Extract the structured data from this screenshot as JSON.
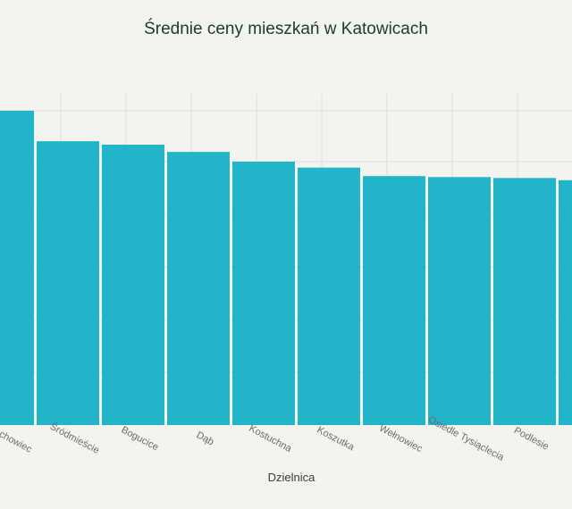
{
  "title": "Średnie ceny mieszkań w Katowicach",
  "chart_data": {
    "type": "bar",
    "title": "Średnie ceny mieszkań w Katowicach",
    "xlabel": "Dzielnica",
    "ylabel": "",
    "categories": [
      "Muchowiec",
      "Śródmieście",
      "Bogucice",
      "Dąb",
      "Kostuchna",
      "Koszutka",
      "Wełnowiec",
      "Osiedle Tysiąclecia",
      "Podlesie",
      ""
    ],
    "values": [
      100,
      90.3,
      89.2,
      86.9,
      83.8,
      81.9,
      79.2,
      78.9,
      78.6,
      77.9
    ],
    "ylim": [
      0,
      105
    ],
    "grid": true,
    "colors": {
      "bar": "#22b5c9",
      "grid": "#dedede",
      "background": "#f3f3ef"
    }
  }
}
